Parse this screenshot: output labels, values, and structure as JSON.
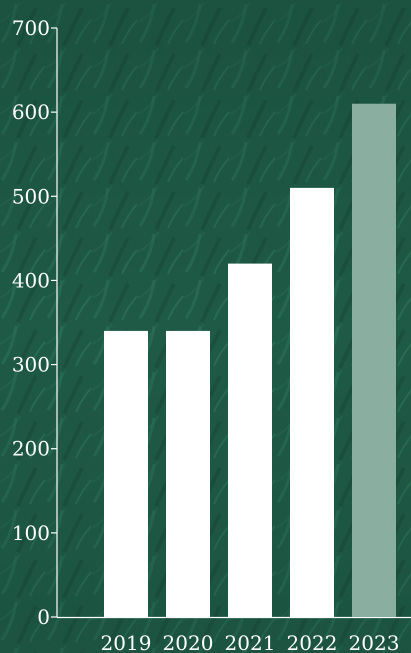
{
  "chart_data": {
    "type": "bar",
    "title": "",
    "xlabel": "",
    "ylabel": "",
    "categories": [
      "2019",
      "2020",
      "2021",
      "2022",
      "2023"
    ],
    "values": [
      340,
      340,
      420,
      510,
      610
    ],
    "ylim": [
      0,
      700
    ],
    "yticks": [
      0,
      100,
      200,
      300,
      400,
      500,
      600,
      700
    ],
    "grid": false,
    "legend": "none",
    "highlight_category": "2023",
    "colors": {
      "background": "#1f5a46",
      "bar": "#ffffff",
      "bar_highlight": "#8aafa0",
      "axis": "#ffffff"
    }
  }
}
